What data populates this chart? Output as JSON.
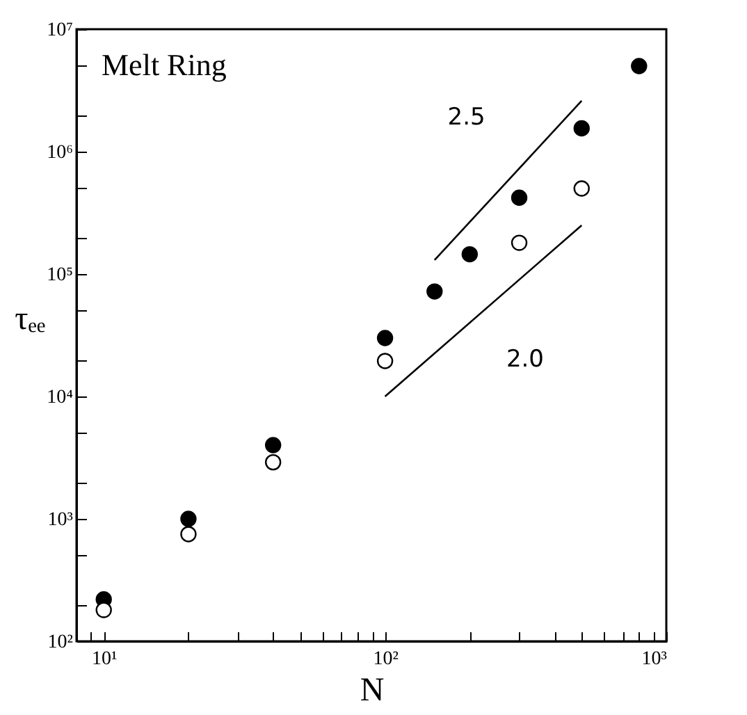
{
  "chart_data": {
    "type": "scatter",
    "xlabel": "N",
    "ylabel": "τₑₑ",
    "log": "xy",
    "grid": false,
    "xlim": [
      8,
      1000
    ],
    "ylim": [
      100,
      10000000
    ],
    "xticks": [
      {
        "value": 8,
        "label": null
      },
      {
        "value": 9,
        "label": null
      },
      {
        "value": 10,
        "label": "10¹"
      },
      {
        "value": 20,
        "label": null
      },
      {
        "value": 30,
        "label": null
      },
      {
        "value": 40,
        "label": null
      },
      {
        "value": 50,
        "label": null
      },
      {
        "value": 60,
        "label": null
      },
      {
        "value": 70,
        "label": null
      },
      {
        "value": 80,
        "label": null
      },
      {
        "value": 90,
        "label": null
      },
      {
        "value": 100,
        "label": "10²"
      },
      {
        "value": 200,
        "label": null
      },
      {
        "value": 300,
        "label": null
      },
      {
        "value": 400,
        "label": null
      },
      {
        "value": 500,
        "label": null
      },
      {
        "value": 600,
        "label": null
      },
      {
        "value": 700,
        "label": null
      },
      {
        "value": 800,
        "label": null
      },
      {
        "value": 900,
        "label": null
      },
      {
        "value": 1000,
        "label": "10³"
      }
    ],
    "yticks": [
      {
        "value": 100,
        "label": "10²"
      },
      {
        "value": 200,
        "label": null
      },
      {
        "value": 500,
        "label": null
      },
      {
        "value": 1000,
        "label": "10³"
      },
      {
        "value": 2000,
        "label": null
      },
      {
        "value": 5000,
        "label": null
      },
      {
        "value": 10000,
        "label": "10⁴"
      },
      {
        "value": 20000,
        "label": null
      },
      {
        "value": 50000,
        "label": null
      },
      {
        "value": 100000,
        "label": "10⁵"
      },
      {
        "value": 200000,
        "label": null
      },
      {
        "value": 500000,
        "label": null
      },
      {
        "value": 1000000,
        "label": "10⁶"
      },
      {
        "value": 2000000,
        "label": null
      },
      {
        "value": 5000000,
        "label": null
      },
      {
        "value": 10000000,
        "label": "10⁷"
      }
    ],
    "series": [
      {
        "marker": "circle",
        "color": "#000000",
        "x": [
          10,
          20,
          40,
          100,
          150,
          200,
          300,
          500,
          800
        ],
        "values": [
          220,
          1000,
          4000,
          30000,
          72000,
          145000,
          420000,
          1550000,
          5000000
        ]
      },
      {
        "marker": "circle",
        "color": "#ffffff",
        "x": [
          10,
          20,
          40,
          100,
          300,
          500
        ],
        "values": [
          180,
          750,
          2900,
          19500,
          180000,
          500000
        ]
      },
      {
        "type": "line",
        "name": "2.5",
        "marker": "none",
        "color": "#000000",
        "x": [
          150,
          500
        ],
        "values": [
          130000,
          2600000
        ]
      },
      {
        "type": "line",
        "name": "2.0",
        "marker": "none",
        "color": "#000000",
        "x": [
          100,
          500
        ],
        "values": [
          10000,
          250000
        ]
      }
    ],
    "annotations": [
      "Melt Ring"
    ]
  }
}
